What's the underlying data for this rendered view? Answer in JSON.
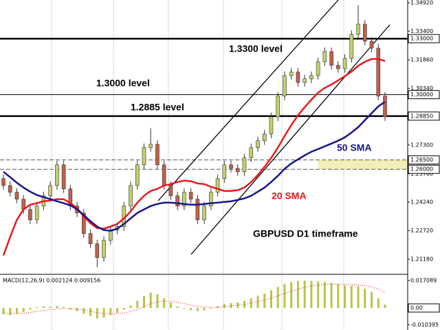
{
  "chart_data": {
    "type": "candlestick",
    "ylim": [
      1.2041,
      1.3507
    ],
    "up_color": "#c5cf6b",
    "down_color": "#c0614a",
    "yticks": [
      {
        "value": 1.3492,
        "label": "1.34920"
      },
      {
        "value": 1.334,
        "label": "1.33400"
      },
      {
        "value": 1.3186,
        "label": "1.31860"
      },
      {
        "value": 1.3034,
        "label": "1.30340"
      },
      {
        "value": 1.273,
        "label": "1.27300"
      },
      {
        "value": 1.2576,
        "label": "1.25760"
      },
      {
        "value": 1.2424,
        "label": "1.24240"
      },
      {
        "value": 1.2272,
        "label": "1.22720"
      },
      {
        "value": 1.2118,
        "label": "1.21180"
      }
    ],
    "levels": [
      {
        "value": 1.33,
        "label": "1.33000",
        "style": "thick"
      },
      {
        "value": 1.3,
        "label": "1.30000",
        "style": "thin"
      },
      {
        "value": 1.2885,
        "label": "1.28850",
        "style": "thick"
      },
      {
        "value": 1.265,
        "label": "1.26500",
        "style": "dashed"
      },
      {
        "value": 1.26,
        "label": "1.26000",
        "style": "dashed"
      }
    ],
    "zone": {
      "from": 1.26,
      "to": 1.265,
      "color": "#f3efb6"
    },
    "annotations": [
      "1.3300 level",
      "1.3000 level",
      "1.2885 level",
      "GBPUSD D1 timeframe"
    ],
    "open": [
      1.255,
      1.2513,
      1.2477,
      1.244,
      1.2385,
      1.2329,
      1.2403,
      1.2458,
      1.2513,
      1.2624,
      1.2495,
      1.2403,
      1.2366,
      1.2256,
      1.2201,
      1.2127,
      1.2219,
      1.2274,
      1.2293,
      1.2403,
      1.2513,
      1.2624,
      1.2716,
      1.2734,
      1.2624,
      1.2513,
      1.2458,
      1.2403,
      1.2477,
      1.244,
      1.2329,
      1.2403,
      1.2477,
      1.255,
      1.2624,
      1.2605,
      1.2587,
      1.2661,
      1.2716,
      1.2753,
      1.2789,
      1.2881,
      1.2992,
      1.3102,
      1.3121,
      1.3065,
      1.3084,
      1.3102,
      1.3176,
      1.3231,
      1.3157,
      1.3139,
      1.3194,
      1.3323,
      1.3378,
      1.3286,
      1.3249,
      1.2992
    ],
    "high": [
      1.2572,
      1.2535,
      1.2499,
      1.2462,
      1.2407,
      1.2425,
      1.248,
      1.2535,
      1.2646,
      1.2646,
      1.2517,
      1.2425,
      1.2388,
      1.2278,
      1.2223,
      1.2241,
      1.2296,
      1.2315,
      1.2425,
      1.2535,
      1.2646,
      1.2738,
      1.282,
      1.2756,
      1.2646,
      1.2535,
      1.248,
      1.2499,
      1.2499,
      1.2462,
      1.2425,
      1.2499,
      1.2572,
      1.2646,
      1.2646,
      1.2627,
      1.2683,
      1.2738,
      1.2775,
      1.2811,
      1.2903,
      1.3014,
      1.3124,
      1.3143,
      1.3143,
      1.3106,
      1.3124,
      1.3198,
      1.3253,
      1.3253,
      1.3179,
      1.3216,
      1.3345,
      1.348,
      1.34,
      1.3308,
      1.3271,
      1.3014
    ],
    "low": [
      1.2491,
      1.2455,
      1.2418,
      1.2363,
      1.2307,
      1.2307,
      1.2381,
      1.2436,
      1.2491,
      1.2473,
      1.2381,
      1.2344,
      1.2234,
      1.2179,
      1.2075,
      1.2105,
      1.2197,
      1.2252,
      1.2271,
      1.2381,
      1.2491,
      1.2602,
      1.2694,
      1.2602,
      1.2491,
      1.2436,
      1.2381,
      1.2381,
      1.2418,
      1.2307,
      1.2307,
      1.2381,
      1.2455,
      1.2528,
      1.2583,
      1.2565,
      1.2565,
      1.2639,
      1.2694,
      1.2731,
      1.2767,
      1.2859,
      1.297,
      1.308,
      1.3043,
      1.3043,
      1.3062,
      1.308,
      1.3154,
      1.3135,
      1.3117,
      1.3117,
      1.3172,
      1.3301,
      1.3264,
      1.3227,
      1.297,
      1.2859
    ],
    "close": [
      1.2513,
      1.2477,
      1.244,
      1.2385,
      1.2329,
      1.2403,
      1.2458,
      1.2513,
      1.2624,
      1.2495,
      1.2403,
      1.2366,
      1.2256,
      1.2201,
      1.2127,
      1.2219,
      1.2274,
      1.2293,
      1.2403,
      1.2513,
      1.2624,
      1.2716,
      1.2734,
      1.2624,
      1.2513,
      1.2458,
      1.2403,
      1.2477,
      1.244,
      1.2329,
      1.2403,
      1.2477,
      1.255,
      1.2624,
      1.2605,
      1.2587,
      1.2661,
      1.2716,
      1.2753,
      1.2789,
      1.2881,
      1.2992,
      1.3102,
      1.3121,
      1.3065,
      1.3084,
      1.3102,
      1.3176,
      1.3231,
      1.3157,
      1.3139,
      1.3194,
      1.3323,
      1.3378,
      1.3286,
      1.3249,
      1.2992,
      1.2881
    ],
    "series": [
      {
        "name": "20 SMA",
        "color": "#e8191c",
        "values": [
          1.2138,
          1.2237,
          1.2329,
          1.2385,
          1.241,
          1.2418,
          1.2429,
          1.2432,
          1.244,
          1.244,
          1.2418,
          1.2392,
          1.2348,
          1.2311,
          1.2285,
          1.2282,
          1.2293,
          1.2307,
          1.2337,
          1.2374,
          1.2421,
          1.2458,
          1.2484,
          1.2495,
          1.2513,
          1.2521,
          1.2532,
          1.2539,
          1.2536,
          1.2524,
          1.2521,
          1.2506,
          1.2495,
          1.2484,
          1.2484,
          1.2488,
          1.2502,
          1.2532,
          1.2569,
          1.2613,
          1.2661,
          1.2716,
          1.2778,
          1.2837,
          1.2889,
          1.2933,
          1.2973,
          1.301,
          1.3036,
          1.3054,
          1.3076,
          1.3099,
          1.3124,
          1.3154,
          1.3176,
          1.3191,
          1.3191,
          1.318
        ]
      },
      {
        "name": "50 SMA",
        "color": "#14148c",
        "values": [
          1.2587,
          1.2558,
          1.2528,
          1.2502,
          1.248,
          1.2462,
          1.2451,
          1.244,
          1.2429,
          1.2418,
          1.2407,
          1.2385,
          1.2355,
          1.2322,
          1.2293,
          1.2274,
          1.2271,
          1.2282,
          1.2307,
          1.2337,
          1.2366,
          1.2385,
          1.2403,
          1.2414,
          1.2421,
          1.2421,
          1.2418,
          1.2414,
          1.241,
          1.241,
          1.2414,
          1.2418,
          1.2421,
          1.2425,
          1.2429,
          1.2436,
          1.2444,
          1.2458,
          1.248,
          1.2502,
          1.2532,
          1.2565,
          1.2602,
          1.2631,
          1.2653,
          1.2675,
          1.2694,
          1.2708,
          1.2723,
          1.2738,
          1.2753,
          1.2771,
          1.2797,
          1.2826,
          1.2863,
          1.29,
          1.2937,
          1.2962
        ]
      }
    ],
    "macd": {
      "label": "MACD(12,26,9) 0.002124 0.009156",
      "ylim": [
        -0.0137,
        0.0205
      ],
      "yticks": [
        0.017089,
        {
          "value": 0,
          "label": "0.00"
        },
        -0.010395
      ],
      "histogram_color": "#b8c44a",
      "signal_color": "#e8191c",
      "histogram": [
        -0.004,
        -0.0045,
        -0.0035,
        -0.0025,
        -0.001,
        0.0005,
        0.001,
        0.0008,
        0.0012,
        0.0005,
        -0.001,
        -0.002,
        -0.0035,
        -0.005,
        -0.0065,
        -0.006,
        -0.0045,
        -0.003,
        -0.001,
        0.0015,
        0.0045,
        0.0075,
        0.0095,
        0.0085,
        0.006,
        0.0035,
        0.001,
        -0.0005,
        -0.0015,
        -0.002,
        -0.0015,
        -0.0005,
        0.001,
        0.0025,
        0.003,
        0.0035,
        0.0045,
        0.006,
        0.0075,
        0.009,
        0.011,
        0.013,
        0.015,
        0.0162,
        0.0168,
        0.017,
        0.0168,
        0.0165,
        0.0162,
        0.0155,
        0.0148,
        0.014,
        0.0138,
        0.0135,
        0.012,
        0.01,
        0.006,
        0.002124
      ],
      "signal": [
        -0.003,
        -0.0034,
        -0.0035,
        -0.0033,
        -0.0028,
        -0.0021,
        -0.0015,
        -0.001,
        -0.0005,
        -0.0003,
        -0.0004,
        -0.0007,
        -0.0013,
        -0.002,
        -0.0029,
        -0.0035,
        -0.0037,
        -0.0036,
        -0.0031,
        -0.0022,
        -0.0009,
        0.0008,
        0.0026,
        0.0038,
        0.0043,
        0.0041,
        0.0035,
        0.0027,
        0.0018,
        0.001,
        0.0005,
        0.0003,
        0.0004,
        0.0008,
        0.0012,
        0.0017,
        0.0022,
        0.003,
        0.0039,
        0.0049,
        0.0061,
        0.0075,
        0.009,
        0.0104,
        0.0117,
        0.0128,
        0.0136,
        0.0142,
        0.0146,
        0.0148,
        0.0148,
        0.0147,
        0.0145,
        0.0143,
        0.0139,
        0.0131,
        0.0117,
        0.009156
      ]
    }
  }
}
